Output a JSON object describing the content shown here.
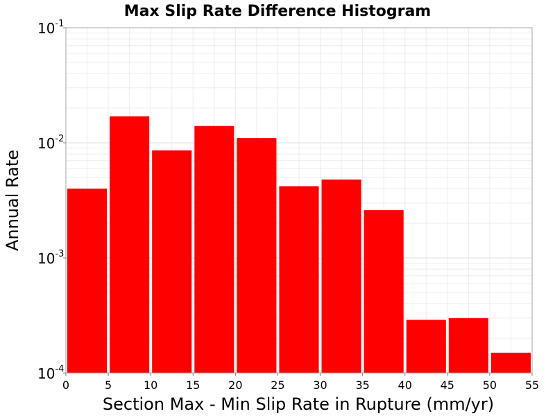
{
  "chart_data": {
    "type": "bar",
    "title": "Max Slip Rate Difference Histogram",
    "xlabel": "Section Max - Min Slip Rate in Rupture (mm/yr)",
    "ylabel": "Annual Rate",
    "y_scale": "log",
    "xlim": [
      0,
      55
    ],
    "ylim": [
      0.0001,
      0.1
    ],
    "bin_width": 5,
    "bar_color": "#ff0000",
    "grid": true,
    "x_ticks": [
      "0",
      "5",
      "10",
      "15",
      "20",
      "25",
      "30",
      "35",
      "40",
      "45",
      "50",
      "55"
    ],
    "y_ticks": [
      {
        "base": "10",
        "exp": "-4",
        "value": 0.0001
      },
      {
        "base": "10",
        "exp": "-3",
        "value": 0.001
      },
      {
        "base": "10",
        "exp": "-2",
        "value": 0.01
      },
      {
        "base": "10",
        "exp": "-1",
        "value": 0.1
      }
    ],
    "bins": [
      {
        "x0": 0,
        "x1": 5,
        "value": 0.004
      },
      {
        "x0": 5,
        "x1": 10,
        "value": 0.017
      },
      {
        "x0": 10,
        "x1": 15,
        "value": 0.0086
      },
      {
        "x0": 15,
        "x1": 20,
        "value": 0.014
      },
      {
        "x0": 20,
        "x1": 25,
        "value": 0.011
      },
      {
        "x0": 25,
        "x1": 30,
        "value": 0.0042
      },
      {
        "x0": 30,
        "x1": 35,
        "value": 0.0048
      },
      {
        "x0": 35,
        "x1": 40,
        "value": 0.0026
      },
      {
        "x0": 40,
        "x1": 45,
        "value": 0.00029
      },
      {
        "x0": 45,
        "x1": 50,
        "value": 0.0003
      },
      {
        "x0": 50,
        "x1": 55,
        "value": 0.00015
      }
    ]
  }
}
